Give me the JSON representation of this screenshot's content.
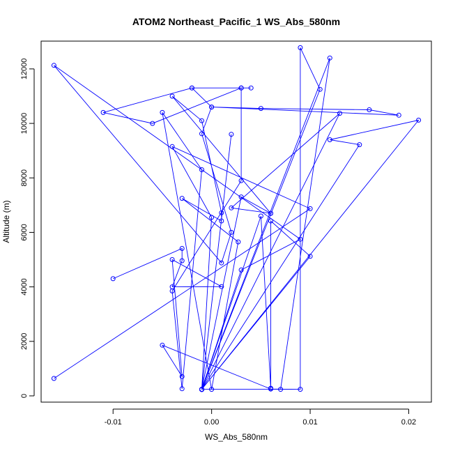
{
  "chart_data": {
    "type": "scatter",
    "title": "ATOM2 Northeast_Pacific_1 WS_Abs_580nm",
    "xlabel": "WS_Abs_580nm",
    "ylabel": "Altitude (m)",
    "xlim": [
      -0.0173,
      0.0223
    ],
    "ylim": [
      -230,
      13020
    ],
    "x_ticks": [
      -0.01,
      0.0,
      0.01,
      0.02
    ],
    "x_tick_labels": [
      "-0.01",
      "0.00",
      "0.01",
      "0.02"
    ],
    "y_ticks": [
      0,
      2000,
      4000,
      6000,
      8000,
      10000,
      12000
    ],
    "y_tick_labels": [
      "0",
      "2000",
      "4000",
      "6000",
      "8000",
      "10000",
      "12000"
    ],
    "grid": false,
    "connect_points": true,
    "line_color": "#0000ff",
    "marker": "open-circle",
    "series": [
      {
        "x": [
          -0.016,
          0.01,
          -0.004,
          0.0,
          -0.001,
          0.002,
          -0.001,
          0.003,
          0.006,
          -0.004,
          -0.001,
          0.001,
          0.001,
          -0.003,
          0.0027,
          0.0,
          -0.005,
          -0.001,
          -0.003,
          -0.004,
          0.003,
          0.003,
          -0.006,
          -0.011,
          -0.002,
          0.003,
          0.003,
          0.004,
          -0.002,
          0.0,
          0.005,
          0.016,
          0.019,
          0.0,
          -0.001,
          0.002,
          0.001,
          -0.016,
          0.009,
          0.003,
          -0.001,
          0.012,
          0.007,
          -0.001,
          0.011,
          0.009,
          0.009,
          0.006,
          -0.005,
          -0.003,
          -0.004,
          0.001,
          -0.004,
          -0.003,
          -0.003,
          -0.01
        ],
        "y": [
          640,
          6870,
          9150,
          6550,
          230,
          9600,
          240,
          7300,
          6700,
          11000,
          10100,
          6720,
          6420,
          7250,
          5650,
          240,
          10400,
          8300,
          260,
          3850,
          7900,
          11300,
          10000,
          10400,
          11300,
          11300,
          11300,
          11300,
          11300,
          10600,
          10550,
          10500,
          10300,
          10600,
          9620,
          6000,
          4880,
          12130,
          5750,
          4620,
          240,
          12400,
          240,
          240,
          11250,
          12780,
          240,
          250,
          1860,
          710,
          5000,
          4010,
          4000,
          4960,
          5410,
          4300
        ]
      },
      {
        "x": [
          -0.001,
          0.021,
          0.012,
          0.015,
          -0.001,
          0.01,
          0.006,
          0.006,
          0.005,
          -0.001,
          0.013,
          0.002,
          0.006
        ],
        "y": [
          240,
          10120,
          9400,
          9220,
          240,
          5120,
          6420,
          280,
          6600,
          240,
          10370,
          6900,
          6700
        ]
      }
    ]
  }
}
